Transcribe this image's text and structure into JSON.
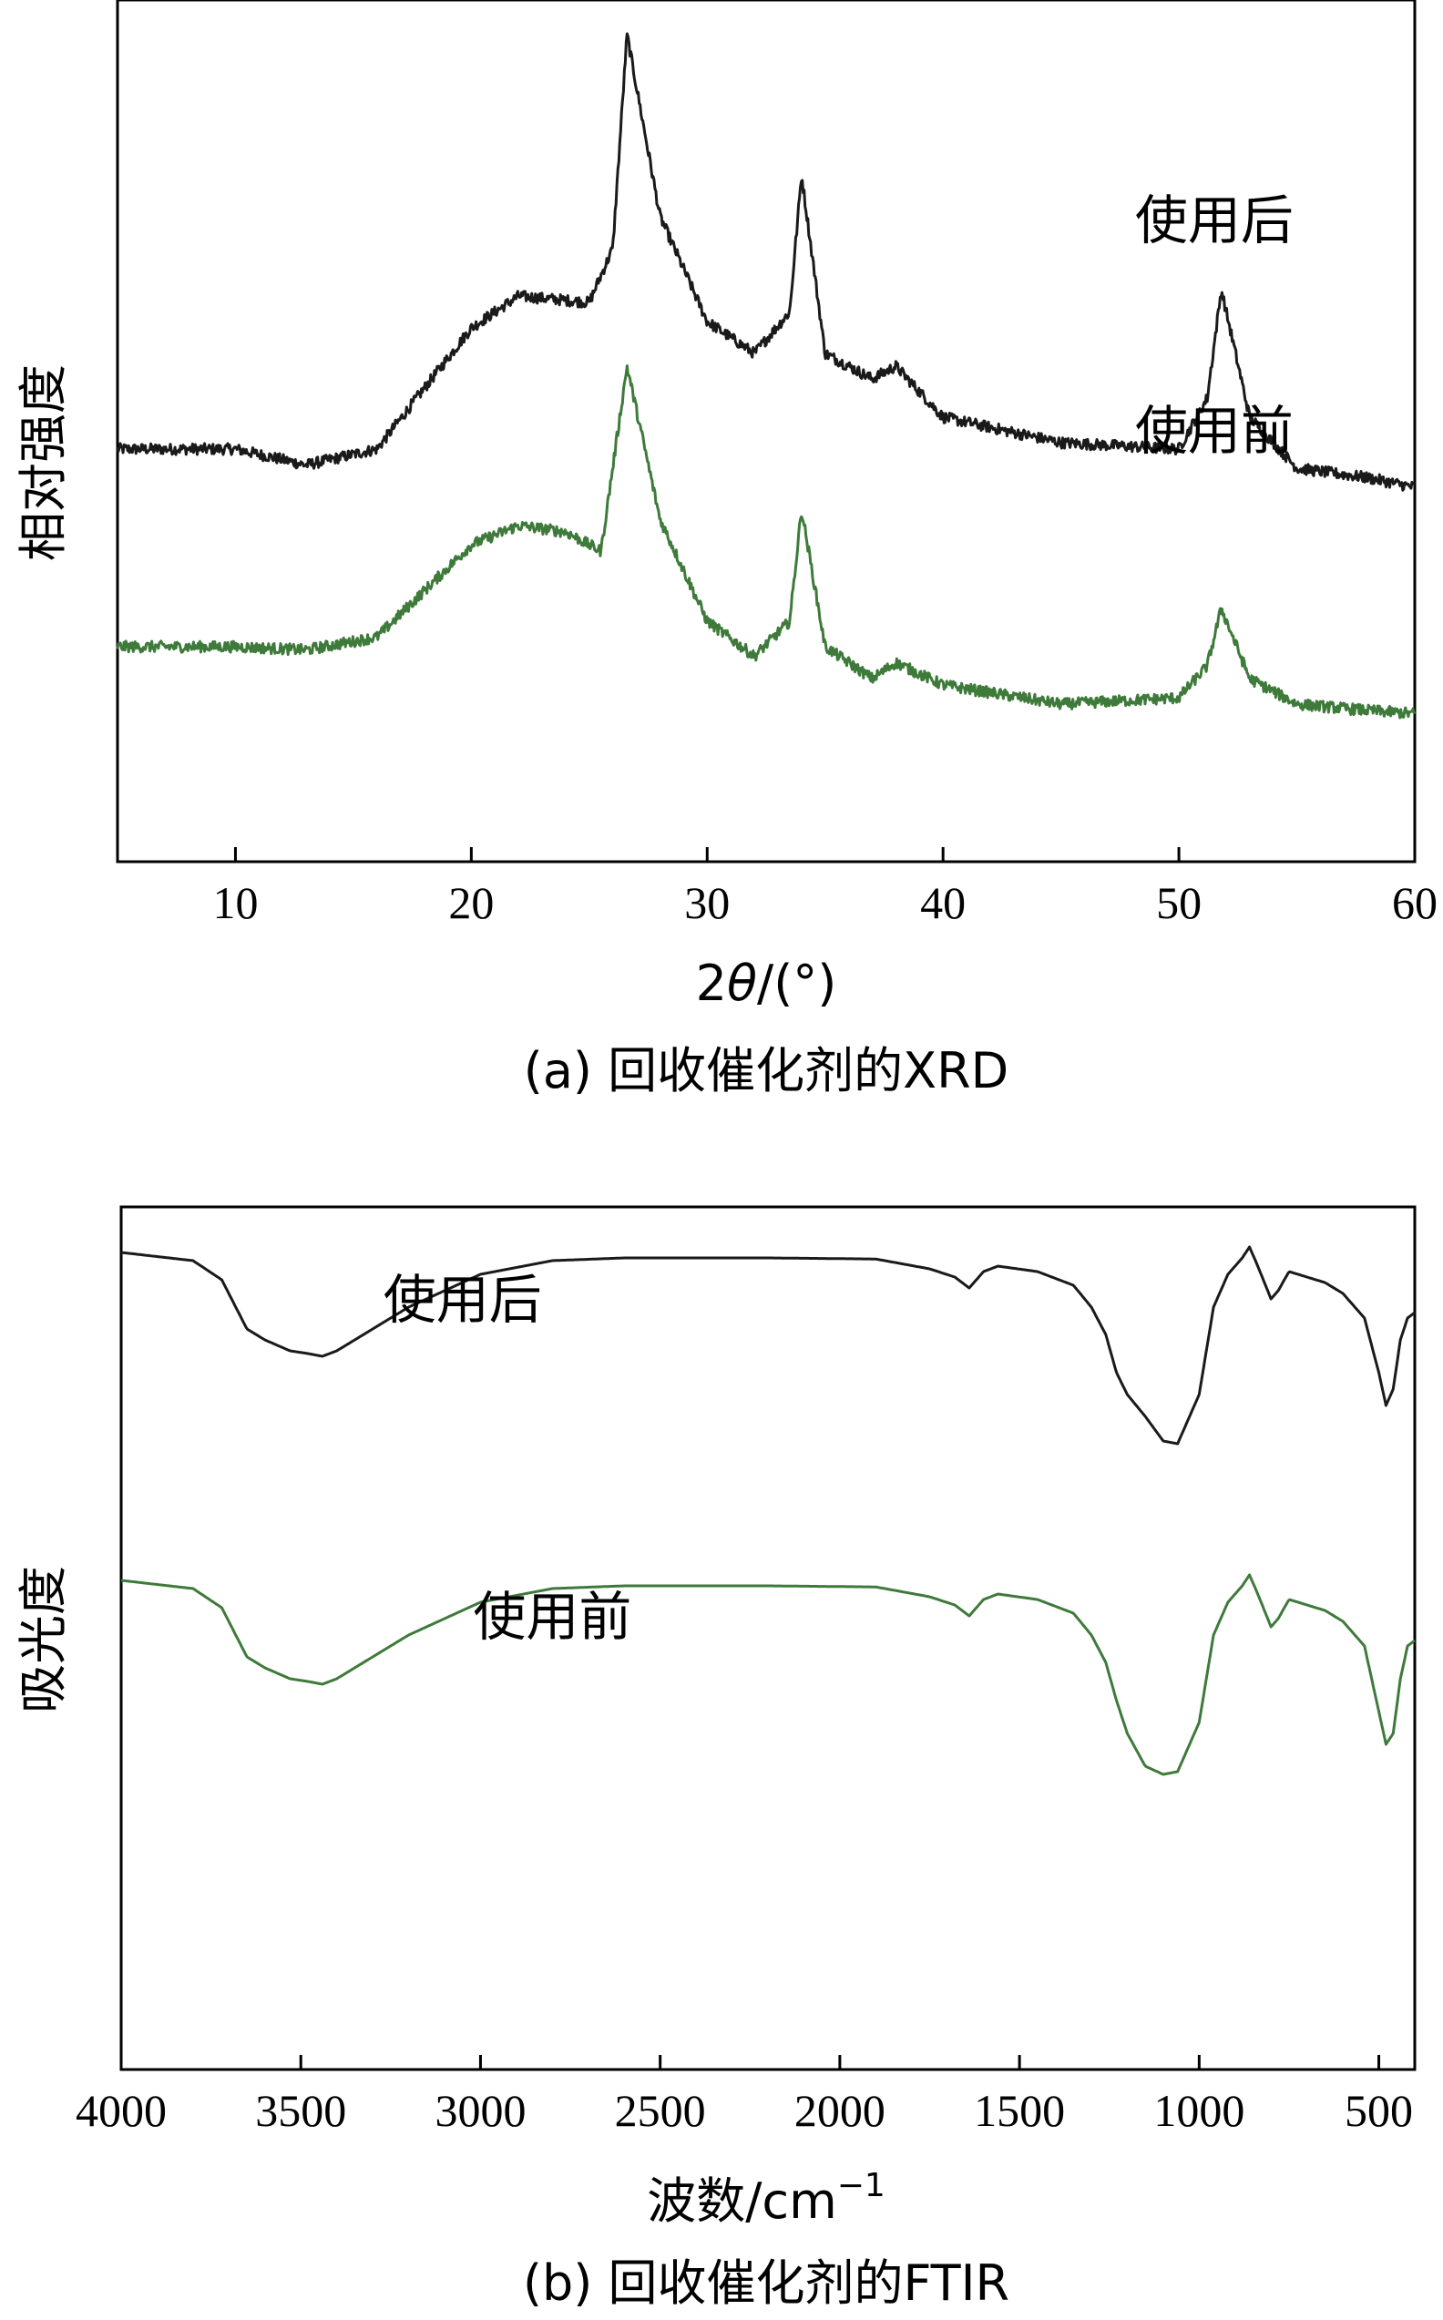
{
  "chart_data": [
    {
      "type": "line",
      "caption": "(a) 回收催化剂的XRD",
      "ylabel": "相对强度",
      "xlabel_parts": [
        "2",
        "θ",
        "/(°)"
      ],
      "xlim": [
        5,
        60
      ],
      "x_ticks": [
        10,
        20,
        30,
        40,
        50,
        60
      ],
      "y_tick_labels": false,
      "grid": false,
      "legend": "none",
      "series": [
        {
          "name": "使用后",
          "color": "#1a1a1a",
          "label_at": [
            51.5,
            1.28
          ],
          "peaks": [
            [
              22.5,
              0.42,
              4.5
            ],
            [
              18.0,
              0.05,
              3.0
            ],
            [
              26.6,
              1.0,
              0.55
            ],
            [
              27.2,
              0.18,
              1.6
            ],
            [
              34.0,
              0.92,
              0.55
            ],
            [
              34.6,
              0.12,
              1.5
            ],
            [
              38.0,
              0.18,
              0.9
            ],
            [
              51.8,
              0.78,
              0.6
            ],
            [
              52.4,
              0.12,
              1.4
            ],
            [
              54.8,
              0.08,
              0.6
            ],
            [
              57.8,
              0.04,
              0.6
            ]
          ],
          "x": [
            5,
            10,
            13,
            16,
            20,
            22,
            25,
            26,
            26.6,
            28,
            30,
            32,
            33.5,
            34,
            35,
            37,
            38,
            40,
            45,
            50,
            51.2,
            51.8,
            53,
            55,
            58,
            60
          ],
          "y": [
            0.62,
            0.62,
            0.57,
            0.62,
            1.0,
            1.1,
            1.08,
            1.25,
            1.92,
            1.35,
            1.02,
            0.92,
            1.05,
            1.48,
            0.92,
            0.84,
            0.88,
            0.72,
            0.64,
            0.62,
            0.78,
            1.12,
            0.72,
            0.56,
            0.53,
            0.5
          ]
        },
        {
          "name": "使用前",
          "color": "#3e7a3a",
          "label_at": [
            51.5,
            0.62
          ],
          "peaks": [
            [
              22.0,
              0.4,
              4.2
            ],
            [
              17.5,
              0.05,
              3.0
            ],
            [
              26.6,
              0.72,
              0.55
            ],
            [
              27.2,
              0.2,
              1.6
            ],
            [
              34.0,
              0.74,
              0.55
            ],
            [
              34.6,
              0.12,
              1.5
            ],
            [
              38.0,
              0.15,
              0.9
            ],
            [
              51.8,
              0.52,
              0.6
            ],
            [
              52.4,
              0.1,
              1.4
            ],
            [
              54.8,
              0.05,
              0.6
            ],
            [
              57.8,
              0.03,
              0.6
            ]
          ],
          "x": [
            5,
            8,
            10,
            13,
            16,
            20,
            22,
            24,
            25.5,
            26.6,
            28,
            30,
            32,
            33.5,
            34,
            35,
            37,
            38,
            40,
            45,
            50,
            51.2,
            51.8,
            53,
            55,
            58,
            60
          ],
          "y": [
            0.0,
            0.0,
            0.0,
            -0.01,
            0.03,
            0.32,
            0.38,
            0.36,
            0.3,
            0.88,
            0.4,
            0.08,
            -0.03,
            0.08,
            0.43,
            0.0,
            -0.1,
            -0.05,
            -0.12,
            -0.18,
            -0.16,
            -0.06,
            0.12,
            -0.1,
            -0.18,
            -0.2,
            -0.21
          ]
        }
      ]
    },
    {
      "type": "line",
      "caption": "(b) 回收催化剂的FTIR",
      "ylabel": "吸光度",
      "xlabel": "波数/cm",
      "xlabel_sup": "−1",
      "xlim": [
        4000,
        400
      ],
      "x_ticks": [
        4000,
        3500,
        3000,
        2500,
        2000,
        1500,
        1000,
        500
      ],
      "y_tick_labels": false,
      "grid": false,
      "legend": "none",
      "series": [
        {
          "name": "使用后",
          "color": "#1a1a1a",
          "label_at": [
            3050,
            0.88
          ],
          "x": [
            4000,
            3800,
            3720,
            3650,
            3600,
            3530,
            3480,
            3440,
            3400,
            3350,
            3300,
            3200,
            3000,
            2800,
            2600,
            2200,
            1900,
            1750,
            1680,
            1640,
            1600,
            1560,
            1450,
            1350,
            1300,
            1260,
            1230,
            1200,
            1150,
            1100,
            1060,
            1000,
            960,
            920,
            880,
            860,
            840,
            800,
            780,
            750,
            700,
            650,
            600,
            540,
            500,
            480,
            460,
            440,
            420,
            400
          ],
          "y": [
            1.0,
            0.985,
            0.95,
            0.86,
            0.84,
            0.82,
            0.815,
            0.81,
            0.82,
            0.84,
            0.86,
            0.9,
            0.96,
            0.985,
            0.99,
            0.99,
            0.988,
            0.97,
            0.955,
            0.935,
            0.965,
            0.975,
            0.965,
            0.94,
            0.9,
            0.85,
            0.78,
            0.74,
            0.7,
            0.655,
            0.65,
            0.74,
            0.9,
            0.96,
            0.99,
            1.01,
            0.98,
            0.915,
            0.93,
            0.965,
            0.955,
            0.945,
            0.925,
            0.88,
            0.78,
            0.72,
            0.75,
            0.84,
            0.88,
            0.89
          ]
        },
        {
          "name": "使用前",
          "color": "#3e7a3a",
          "label_at": [
            2800,
            0.3
          ],
          "x": [
            4000,
            3800,
            3720,
            3650,
            3600,
            3530,
            3480,
            3440,
            3400,
            3350,
            3300,
            3200,
            3000,
            2800,
            2600,
            2200,
            1900,
            1750,
            1680,
            1640,
            1600,
            1560,
            1450,
            1350,
            1300,
            1260,
            1230,
            1200,
            1150,
            1100,
            1060,
            1000,
            960,
            920,
            880,
            860,
            840,
            800,
            780,
            750,
            700,
            650,
            600,
            540,
            500,
            480,
            460,
            440,
            420,
            400
          ],
          "y": [
            0.4,
            0.385,
            0.35,
            0.26,
            0.24,
            0.22,
            0.215,
            0.21,
            0.22,
            0.24,
            0.26,
            0.3,
            0.36,
            0.385,
            0.39,
            0.39,
            0.388,
            0.37,
            0.355,
            0.335,
            0.365,
            0.375,
            0.365,
            0.34,
            0.3,
            0.25,
            0.18,
            0.12,
            0.06,
            0.045,
            0.05,
            0.14,
            0.3,
            0.36,
            0.39,
            0.41,
            0.38,
            0.315,
            0.33,
            0.365,
            0.355,
            0.345,
            0.325,
            0.28,
            0.16,
            0.1,
            0.12,
            0.22,
            0.28,
            0.29
          ]
        }
      ]
    }
  ]
}
